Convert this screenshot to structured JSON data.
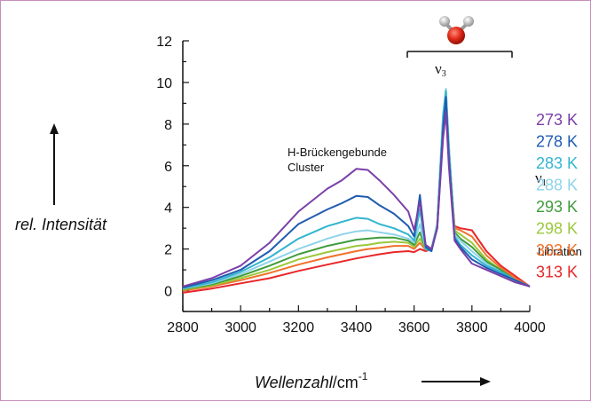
{
  "chart_data": {
    "type": "line",
    "title": "",
    "xlabel": "Wellenzahl/cm",
    "xlabel_italic_part": "Wellenzahl",
    "xlabel_unit": "/cm",
    "xlabel_exponent": "-1",
    "ylabel": "rel. Intensität",
    "xlim": [
      2800,
      4000
    ],
    "ylim": [
      -1,
      12
    ],
    "x_ticks": [
      "2800",
      "3000",
      "3200",
      "3400",
      "3600",
      "3800",
      "4000"
    ],
    "y_ticks": [
      "0",
      "2",
      "4",
      "6",
      "8",
      "10",
      "12"
    ],
    "grid": false,
    "legend_position": "right",
    "annotations": {
      "cluster_line1": "H-Brückengebunde",
      "cluster_line2": "Cluster",
      "nu1": "ν",
      "nu1_sub": "1",
      "nu3": "ν",
      "nu3_sub": "3",
      "libration": "Libration"
    },
    "series": [
      {
        "name": "273 K",
        "color": "#7a3fa8",
        "points": [
          [
            2800,
            0.2
          ],
          [
            2900,
            0.6
          ],
          [
            3000,
            1.2
          ],
          [
            3100,
            2.3
          ],
          [
            3200,
            3.8
          ],
          [
            3300,
            4.9
          ],
          [
            3350,
            5.3
          ],
          [
            3400,
            5.85
          ],
          [
            3440,
            5.8
          ],
          [
            3480,
            5.3
          ],
          [
            3530,
            4.6
          ],
          [
            3580,
            3.8
          ],
          [
            3600,
            2.9
          ],
          [
            3620,
            4.3
          ],
          [
            3640,
            2.2
          ],
          [
            3660,
            2.0
          ],
          [
            3680,
            3.0
          ],
          [
            3700,
            7.3
          ],
          [
            3710,
            8.6
          ],
          [
            3720,
            6.0
          ],
          [
            3740,
            2.4
          ],
          [
            3760,
            2.0
          ],
          [
            3800,
            1.3
          ],
          [
            3850,
            1.0
          ],
          [
            3900,
            0.7
          ],
          [
            3950,
            0.4
          ],
          [
            4000,
            0.2
          ]
        ]
      },
      {
        "name": "278 K",
        "color": "#1f5cb0",
        "points": [
          [
            2800,
            0.15
          ],
          [
            2900,
            0.5
          ],
          [
            3000,
            1.0
          ],
          [
            3100,
            1.9
          ],
          [
            3200,
            3.2
          ],
          [
            3300,
            3.9
          ],
          [
            3350,
            4.2
          ],
          [
            3400,
            4.55
          ],
          [
            3440,
            4.5
          ],
          [
            3480,
            4.1
          ],
          [
            3530,
            3.7
          ],
          [
            3580,
            3.1
          ],
          [
            3600,
            2.6
          ],
          [
            3620,
            4.6
          ],
          [
            3640,
            2.1
          ],
          [
            3660,
            1.9
          ],
          [
            3680,
            3.0
          ],
          [
            3700,
            7.8
          ],
          [
            3710,
            9.3
          ],
          [
            3720,
            6.4
          ],
          [
            3740,
            2.5
          ],
          [
            3760,
            2.1
          ],
          [
            3800,
            1.5
          ],
          [
            3850,
            1.1
          ],
          [
            3900,
            0.8
          ],
          [
            3950,
            0.5
          ],
          [
            4000,
            0.2
          ]
        ]
      },
      {
        "name": "283 K",
        "color": "#33b5cf",
        "points": [
          [
            2800,
            0.12
          ],
          [
            2900,
            0.4
          ],
          [
            3000,
            0.9
          ],
          [
            3100,
            1.6
          ],
          [
            3200,
            2.5
          ],
          [
            3300,
            3.1
          ],
          [
            3350,
            3.3
          ],
          [
            3400,
            3.5
          ],
          [
            3440,
            3.45
          ],
          [
            3480,
            3.2
          ],
          [
            3530,
            3.0
          ],
          [
            3580,
            2.7
          ],
          [
            3600,
            2.4
          ],
          [
            3620,
            3.9
          ],
          [
            3640,
            2.0
          ],
          [
            3660,
            1.9
          ],
          [
            3680,
            3.1
          ],
          [
            3700,
            8.3
          ],
          [
            3710,
            9.6
          ],
          [
            3720,
            6.8
          ],
          [
            3740,
            2.6
          ],
          [
            3760,
            2.2
          ],
          [
            3800,
            1.7
          ],
          [
            3850,
            1.2
          ],
          [
            3900,
            0.9
          ],
          [
            3950,
            0.5
          ],
          [
            4000,
            0.2
          ]
        ]
      },
      {
        "name": "288 K",
        "color": "#8fd3ea",
        "points": [
          [
            2800,
            0.1
          ],
          [
            2900,
            0.35
          ],
          [
            3000,
            0.8
          ],
          [
            3100,
            1.4
          ],
          [
            3200,
            2.0
          ],
          [
            3300,
            2.5
          ],
          [
            3350,
            2.7
          ],
          [
            3400,
            2.85
          ],
          [
            3440,
            2.9
          ],
          [
            3480,
            2.8
          ],
          [
            3530,
            2.7
          ],
          [
            3580,
            2.5
          ],
          [
            3600,
            2.3
          ],
          [
            3620,
            3.2
          ],
          [
            3640,
            2.0
          ],
          [
            3660,
            2.0
          ],
          [
            3680,
            3.2
          ],
          [
            3700,
            8.5
          ],
          [
            3710,
            9.7
          ],
          [
            3720,
            7.0
          ],
          [
            3740,
            2.7
          ],
          [
            3760,
            2.4
          ],
          [
            3800,
            1.9
          ],
          [
            3850,
            1.3
          ],
          [
            3900,
            0.9
          ],
          [
            3950,
            0.5
          ],
          [
            4000,
            0.2
          ]
        ]
      },
      {
        "name": "293 K",
        "color": "#3f9b3c",
        "points": [
          [
            2800,
            0.08
          ],
          [
            2900,
            0.3
          ],
          [
            3000,
            0.7
          ],
          [
            3100,
            1.2
          ],
          [
            3200,
            1.75
          ],
          [
            3300,
            2.15
          ],
          [
            3350,
            2.3
          ],
          [
            3400,
            2.45
          ],
          [
            3440,
            2.5
          ],
          [
            3480,
            2.55
          ],
          [
            3530,
            2.55
          ],
          [
            3580,
            2.4
          ],
          [
            3600,
            2.2
          ],
          [
            3620,
            2.8
          ],
          [
            3640,
            2.0
          ],
          [
            3660,
            2.0
          ],
          [
            3680,
            3.2
          ],
          [
            3700,
            8.4
          ],
          [
            3710,
            9.6
          ],
          [
            3720,
            7.0
          ],
          [
            3740,
            2.8
          ],
          [
            3760,
            2.5
          ],
          [
            3800,
            2.1
          ],
          [
            3850,
            1.4
          ],
          [
            3900,
            1.0
          ],
          [
            3950,
            0.5
          ],
          [
            4000,
            0.2
          ]
        ]
      },
      {
        "name": "298 K",
        "color": "#9cc83c",
        "points": [
          [
            2800,
            0.05
          ],
          [
            2900,
            0.25
          ],
          [
            3000,
            0.6
          ],
          [
            3100,
            1.0
          ],
          [
            3200,
            1.5
          ],
          [
            3300,
            1.85
          ],
          [
            3350,
            2.0
          ],
          [
            3400,
            2.15
          ],
          [
            3440,
            2.2
          ],
          [
            3480,
            2.3
          ],
          [
            3530,
            2.35
          ],
          [
            3580,
            2.3
          ],
          [
            3600,
            2.1
          ],
          [
            3620,
            2.5
          ],
          [
            3640,
            2.0
          ],
          [
            3660,
            2.0
          ],
          [
            3680,
            3.2
          ],
          [
            3700,
            8.3
          ],
          [
            3710,
            9.4
          ],
          [
            3720,
            6.9
          ],
          [
            3740,
            2.9
          ],
          [
            3760,
            2.7
          ],
          [
            3800,
            2.3
          ],
          [
            3850,
            1.5
          ],
          [
            3900,
            1.0
          ],
          [
            3950,
            0.5
          ],
          [
            4000,
            0.2
          ]
        ]
      },
      {
        "name": "303 K",
        "color": "#f2712b",
        "points": [
          [
            2800,
            0.0
          ],
          [
            2900,
            0.2
          ],
          [
            3000,
            0.5
          ],
          [
            3100,
            0.85
          ],
          [
            3200,
            1.25
          ],
          [
            3300,
            1.6
          ],
          [
            3350,
            1.75
          ],
          [
            3400,
            1.9
          ],
          [
            3440,
            2.0
          ],
          [
            3480,
            2.05
          ],
          [
            3530,
            2.15
          ],
          [
            3580,
            2.15
          ],
          [
            3600,
            2.0
          ],
          [
            3620,
            2.3
          ],
          [
            3640,
            1.95
          ],
          [
            3660,
            2.0
          ],
          [
            3680,
            3.1
          ],
          [
            3700,
            8.1
          ],
          [
            3710,
            9.1
          ],
          [
            3720,
            6.8
          ],
          [
            3740,
            3.0
          ],
          [
            3760,
            2.9
          ],
          [
            3800,
            2.6
          ],
          [
            3850,
            1.7
          ],
          [
            3900,
            1.1
          ],
          [
            3950,
            0.6
          ],
          [
            4000,
            0.2
          ]
        ]
      },
      {
        "name": "313 K",
        "color": "#e8262a",
        "points": [
          [
            2800,
            -0.1
          ],
          [
            2900,
            0.1
          ],
          [
            3000,
            0.35
          ],
          [
            3100,
            0.6
          ],
          [
            3200,
            0.95
          ],
          [
            3300,
            1.25
          ],
          [
            3350,
            1.4
          ],
          [
            3400,
            1.55
          ],
          [
            3440,
            1.65
          ],
          [
            3480,
            1.75
          ],
          [
            3530,
            1.85
          ],
          [
            3580,
            1.9
          ],
          [
            3600,
            1.85
          ],
          [
            3620,
            2.0
          ],
          [
            3640,
            1.9
          ],
          [
            3660,
            2.0
          ],
          [
            3680,
            3.0
          ],
          [
            3700,
            7.6
          ],
          [
            3710,
            8.6
          ],
          [
            3720,
            6.5
          ],
          [
            3740,
            3.1
          ],
          [
            3760,
            3.0
          ],
          [
            3800,
            2.9
          ],
          [
            3850,
            1.9
          ],
          [
            3900,
            1.2
          ],
          [
            3950,
            0.7
          ],
          [
            4000,
            0.2
          ]
        ]
      }
    ]
  }
}
